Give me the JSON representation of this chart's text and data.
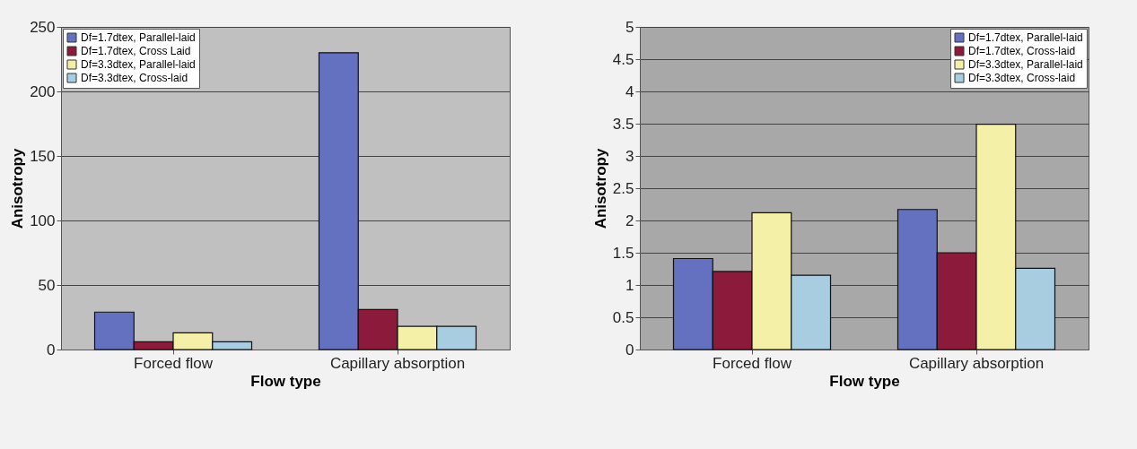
{
  "chart_data": [
    {
      "type": "bar",
      "xlabel": "Flow type",
      "ylabel": "Anisotropy",
      "categories": [
        "Forced flow",
        "Capillary absorption"
      ],
      "ylim": [
        0,
        250
      ],
      "yticks": [
        0,
        50,
        100,
        150,
        200,
        250
      ],
      "grid": "y",
      "legend": "top left",
      "series": [
        {
          "name": "Df=1.7dtex, Parallel-laid",
          "color": "#6470c0",
          "values": [
            29,
            230
          ]
        },
        {
          "name": "Df=1.7dtex, Cross Laid",
          "color": "#8c1a3a",
          "values": [
            6,
            31
          ]
        },
        {
          "name": "Df=3.3dtex, Parallel-laid",
          "color": "#f5f0a8",
          "values": [
            13,
            18
          ]
        },
        {
          "name": "Df=3.3dtex, Cross-laid",
          "color": "#a8cce0",
          "values": [
            6,
            18
          ]
        }
      ]
    },
    {
      "type": "bar",
      "xlabel": "Flow type",
      "ylabel": "Anisotropy",
      "categories": [
        "Forced flow",
        "Capillary absorption"
      ],
      "ylim": [
        0,
        5
      ],
      "yticks": [
        0,
        0.5,
        1,
        1.5,
        2,
        2.5,
        3,
        3.5,
        4,
        4.5,
        5
      ],
      "grid": "y",
      "legend": "top right",
      "series": [
        {
          "name": "Df=1.7dtex, Parallel-laid",
          "color": "#6470c0",
          "values": [
            1.41,
            2.17
          ]
        },
        {
          "name": "Df=1.7dtex, Cross-laid",
          "color": "#8c1a3a",
          "values": [
            1.21,
            1.5
          ]
        },
        {
          "name": "Df=3.3dtex, Parallel-laid",
          "color": "#f5f0a8",
          "values": [
            2.12,
            3.49
          ]
        },
        {
          "name": "Df=3.3dtex, Cross-laid",
          "color": "#a8cce0",
          "values": [
            1.15,
            1.26
          ]
        }
      ]
    }
  ]
}
